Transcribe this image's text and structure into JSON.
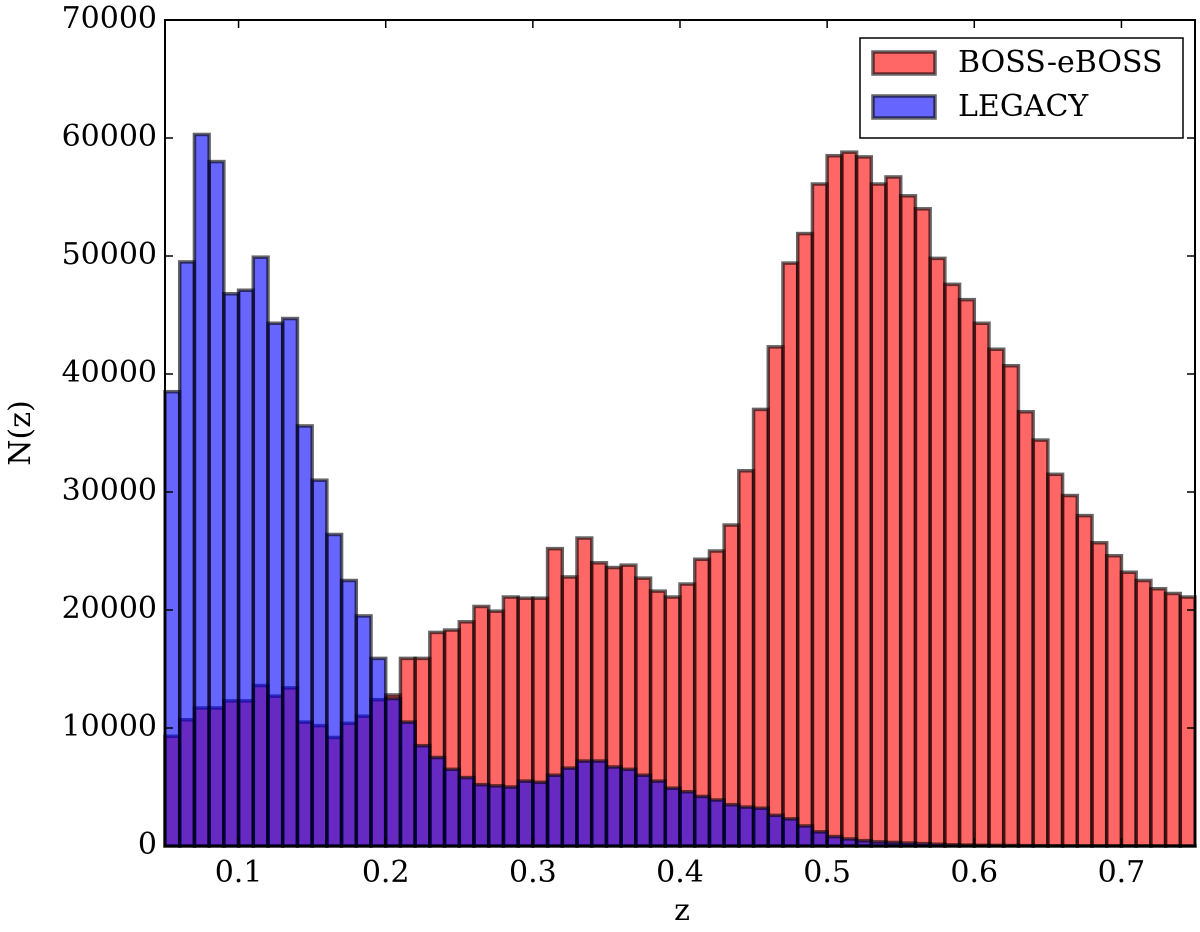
{
  "chart_data": {
    "type": "histogram",
    "xlabel": "z",
    "ylabel": "N(z)",
    "bins": [
      0.05,
      0.06,
      0.07,
      0.08,
      0.09,
      0.1,
      0.11,
      0.12,
      0.13,
      0.14,
      0.15,
      0.16,
      0.17,
      0.18,
      0.19,
      0.2,
      0.21,
      0.22,
      0.23,
      0.24,
      0.25,
      0.26,
      0.27,
      0.28,
      0.29,
      0.3,
      0.31,
      0.32,
      0.33,
      0.34,
      0.35,
      0.36,
      0.37,
      0.38,
      0.39,
      0.4,
      0.41,
      0.42,
      0.43,
      0.44,
      0.45,
      0.46,
      0.47,
      0.48,
      0.49,
      0.5,
      0.51,
      0.52,
      0.53,
      0.54,
      0.55,
      0.56,
      0.57,
      0.58,
      0.59,
      0.6,
      0.61,
      0.62,
      0.63,
      0.64,
      0.65,
      0.66,
      0.67,
      0.68,
      0.69,
      0.7,
      0.71,
      0.72,
      0.73,
      0.74,
      0.75
    ],
    "series": [
      {
        "name": "BOSS-eBOSS",
        "color": "#ff0000",
        "values": [
          9300,
          10700,
          11700,
          11700,
          12300,
          12300,
          13600,
          12700,
          13400,
          10500,
          10200,
          9200,
          10400,
          11000,
          12400,
          12800,
          15900,
          15900,
          18100,
          18300,
          19000,
          20300,
          19900,
          21100,
          21000,
          21000,
          25200,
          22800,
          26100,
          24000,
          23600,
          23800,
          22700,
          21600,
          21100,
          22200,
          24300,
          25000,
          27200,
          31800,
          37000,
          42300,
          49400,
          51900,
          56100,
          58500,
          58800,
          58400,
          56100,
          56700,
          55100,
          54000,
          49800,
          47600,
          46300,
          44300,
          42100,
          40700,
          36800,
          34400,
          31500,
          29700,
          28000,
          25700,
          24600,
          23200,
          22500,
          21800,
          21400,
          21100
        ]
      },
      {
        "name": "LEGACY",
        "color": "#0000ff",
        "values": [
          38500,
          49500,
          60300,
          58000,
          46800,
          47100,
          49900,
          44300,
          44700,
          35600,
          31000,
          26400,
          22500,
          19500,
          15900,
          12500,
          10500,
          8500,
          7500,
          6500,
          5800,
          5200,
          5100,
          5000,
          5500,
          5400,
          6000,
          6600,
          7200,
          7200,
          6700,
          6500,
          6000,
          5500,
          4900,
          4600,
          4200,
          3900,
          3500,
          3300,
          3200,
          2600,
          2300,
          1700,
          1200,
          800,
          600,
          450,
          350,
          300,
          250,
          200,
          150,
          100,
          80,
          60,
          50,
          40,
          30,
          25,
          20,
          15,
          12,
          10,
          10,
          8,
          6,
          5,
          4,
          3
        ]
      }
    ],
    "xlim": [
      0.05,
      0.75
    ],
    "xticks": [
      0.1,
      0.2,
      0.3,
      0.4,
      0.5,
      0.6,
      0.7
    ],
    "ylim": [
      0,
      70000
    ],
    "yticks": [
      0,
      10000,
      20000,
      30000,
      40000,
      50000,
      60000,
      70000
    ],
    "legend": "upper right"
  }
}
